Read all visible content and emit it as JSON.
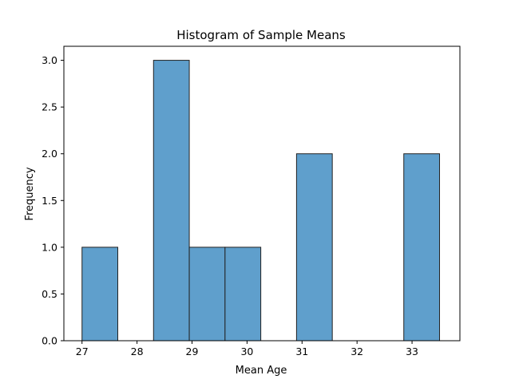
{
  "chart_data": {
    "type": "bar",
    "title": "Histogram of Sample Means",
    "xlabel": "Mean Age",
    "ylabel": "Frequency",
    "xlim": [
      26.67,
      33.87
    ],
    "ylim": [
      0,
      3.15
    ],
    "grid": false,
    "legend": "none",
    "bar_fill": "#5f9fcc",
    "bar_edge": "#222222",
    "bins": [
      {
        "start": 27.0,
        "end": 27.65,
        "count": 1
      },
      {
        "start": 27.65,
        "end": 28.3,
        "count": 0
      },
      {
        "start": 28.3,
        "end": 28.95,
        "count": 3
      },
      {
        "start": 28.95,
        "end": 29.6,
        "count": 1
      },
      {
        "start": 29.6,
        "end": 30.25,
        "count": 1
      },
      {
        "start": 30.25,
        "end": 30.9,
        "count": 0
      },
      {
        "start": 30.9,
        "end": 31.55,
        "count": 2
      },
      {
        "start": 31.55,
        "end": 32.2,
        "count": 0
      },
      {
        "start": 32.2,
        "end": 32.85,
        "count": 0
      },
      {
        "start": 32.85,
        "end": 33.5,
        "count": 2
      }
    ],
    "x_ticks": [
      27,
      28,
      29,
      30,
      31,
      32,
      33
    ],
    "x_tick_labels": [
      "27",
      "28",
      "29",
      "30",
      "31",
      "32",
      "33"
    ],
    "y_ticks": [
      0,
      0.5,
      1,
      1.5,
      2,
      2.5,
      3
    ],
    "y_tick_labels": [
      "0.0",
      "0.5",
      "1.0",
      "1.5",
      "2.0",
      "2.5",
      "3.0"
    ]
  }
}
